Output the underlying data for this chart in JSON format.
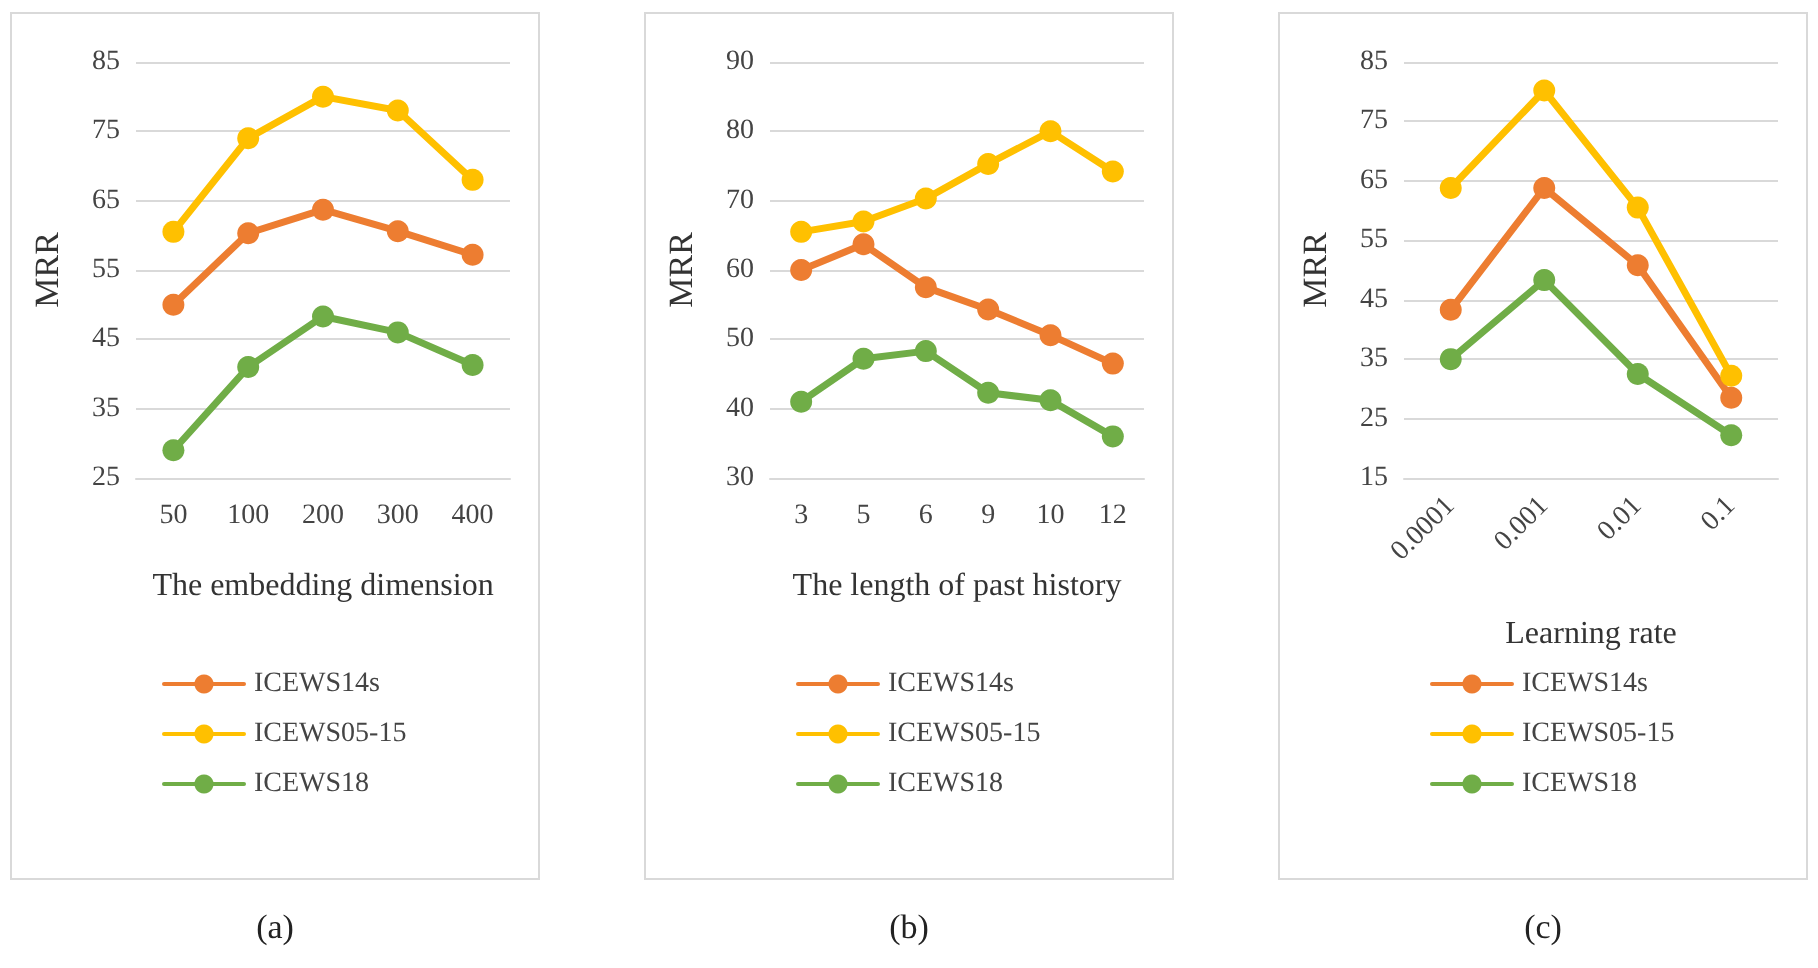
{
  "chart_data": [
    {
      "type": "line",
      "annotations": [
        "(a)"
      ],
      "xlabel": "The embedding dimension",
      "ylabel": "MRR",
      "categories": [
        "50",
        "100",
        "200",
        "300",
        "400"
      ],
      "ylim": [
        25,
        85
      ],
      "yticks": [
        25,
        35,
        45,
        55,
        65,
        75,
        85
      ],
      "grid": "y",
      "legend": "bottom",
      "marker": "circle",
      "series": [
        {
          "name": "ICEWS14s",
          "color": "#ed7d31",
          "values": [
            50,
            60.3,
            63.7,
            60.6,
            57.2
          ]
        },
        {
          "name": "ICEWS05-15",
          "color": "#ffc000",
          "values": [
            60.5,
            74,
            80,
            78,
            68
          ]
        },
        {
          "name": "ICEWS18",
          "color": "#70ad47",
          "values": [
            29,
            41,
            48.3,
            46,
            41.3
          ]
        }
      ]
    },
    {
      "type": "line",
      "annotations": [
        "(b)"
      ],
      "xlabel": "The length of past history",
      "ylabel": "MRR",
      "categories": [
        "3",
        "5",
        "6",
        "9",
        "10",
        "12"
      ],
      "ylim": [
        30,
        90
      ],
      "yticks": [
        30,
        40,
        50,
        60,
        70,
        80,
        90
      ],
      "grid": "y",
      "legend": "bottom",
      "marker": "circle",
      "series": [
        {
          "name": "ICEWS14s",
          "color": "#ed7d31",
          "values": [
            60,
            63.7,
            57.5,
            54.3,
            50.6,
            46.5
          ]
        },
        {
          "name": "ICEWS05-15",
          "color": "#ffc000",
          "values": [
            65.5,
            67,
            70.3,
            75.3,
            80,
            74.2
          ]
        },
        {
          "name": "ICEWS18",
          "color": "#70ad47",
          "values": [
            41,
            47.2,
            48.3,
            42.3,
            41.2,
            36
          ]
        }
      ]
    },
    {
      "type": "line",
      "annotations": [
        "(c)"
      ],
      "xlabel": "Learning rate",
      "ylabel": "MRR",
      "categories": [
        "0.0001",
        "0.001",
        "0.01",
        "0.1"
      ],
      "ylim": [
        15,
        85
      ],
      "yticks": [
        15,
        25,
        35,
        45,
        55,
        65,
        75,
        85
      ],
      "grid": "y",
      "legend": "bottom",
      "marker": "circle",
      "series": [
        {
          "name": "ICEWS14s",
          "color": "#ed7d31",
          "values": [
            43.3,
            63.8,
            50.8,
            28.5
          ]
        },
        {
          "name": "ICEWS05-15",
          "color": "#ffc000",
          "values": [
            63.8,
            80.2,
            60.5,
            32.2
          ]
        },
        {
          "name": "ICEWS18",
          "color": "#70ad47",
          "values": [
            35,
            48.3,
            32.5,
            22.2
          ]
        }
      ]
    }
  ]
}
